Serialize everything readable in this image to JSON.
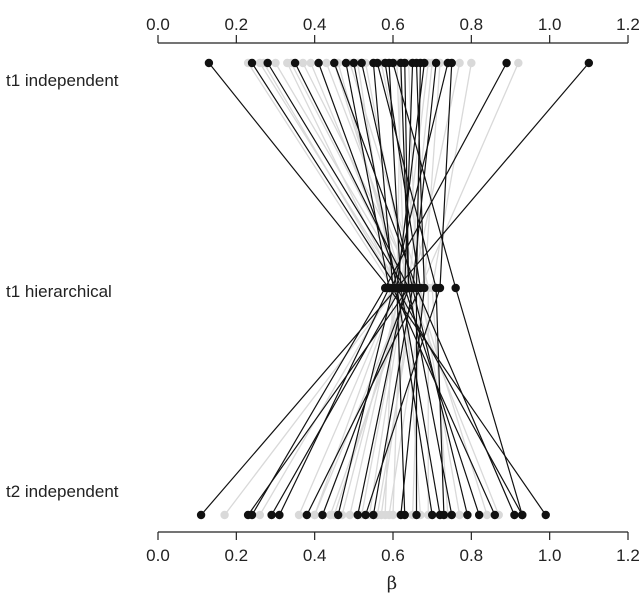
{
  "chart_data": {
    "type": "scatter",
    "title": "",
    "xlabel": "β",
    "ylabel": "",
    "xlim": [
      0.0,
      1.2
    ],
    "x_ticks": [
      "0.0",
      "0.2",
      "0.4",
      "0.6",
      "0.8",
      "1.0",
      "1.2"
    ],
    "x_tick_values": [
      0.0,
      0.2,
      0.4,
      0.6,
      0.8,
      1.0,
      1.2
    ],
    "rows": [
      "t1 independent",
      "t1 hierarchical",
      "t2 independent"
    ],
    "grid": false,
    "legend": "none",
    "colors": {
      "highlighted": "#111111",
      "background": "#d9d9d9",
      "axis": "#222222"
    },
    "highlighted_subjects": [
      {
        "t1_independent": 0.13,
        "t1_hierarchical": 0.59,
        "t2_independent": 0.99
      },
      {
        "t1_independent": 0.24,
        "t1_hierarchical": 0.61,
        "t2_independent": 0.93
      },
      {
        "t1_independent": 0.28,
        "t1_hierarchical": 0.63,
        "t2_independent": 0.82
      },
      {
        "t1_independent": 0.35,
        "t1_hierarchical": 0.64,
        "t2_independent": 0.75
      },
      {
        "t1_independent": 0.41,
        "t1_hierarchical": 0.62,
        "t2_independent": 0.72
      },
      {
        "t1_independent": 0.45,
        "t1_hierarchical": 0.66,
        "t2_independent": 0.91
      },
      {
        "t1_independent": 0.5,
        "t1_hierarchical": 0.61,
        "t2_independent": 0.63
      },
      {
        "t1_independent": 0.52,
        "t1_hierarchical": 0.65,
        "t2_independent": 0.55
      },
      {
        "t1_independent": 0.55,
        "t1_hierarchical": 0.6,
        "t2_independent": 0.46
      },
      {
        "t1_independent": 0.58,
        "t1_hierarchical": 0.67,
        "t2_independent": 0.38
      },
      {
        "t1_independent": 0.59,
        "t1_hierarchical": 0.62,
        "t2_independent": 0.29
      },
      {
        "t1_independent": 0.63,
        "t1_hierarchical": 0.64,
        "t2_independent": 0.23
      },
      {
        "t1_independent": 0.65,
        "t1_hierarchical": 0.63,
        "t2_independent": 0.51
      },
      {
        "t1_independent": 0.66,
        "t1_hierarchical": 0.68,
        "t2_independent": 0.62
      },
      {
        "t1_independent": 0.68,
        "t1_hierarchical": 0.61,
        "t2_independent": 0.7
      },
      {
        "t1_independent": 0.71,
        "t1_hierarchical": 0.65,
        "t2_independent": 0.79
      },
      {
        "t1_independent": 0.74,
        "t1_hierarchical": 0.6,
        "t2_independent": 0.86
      },
      {
        "t1_independent": 0.75,
        "t1_hierarchical": 0.72,
        "t2_independent": 0.53
      },
      {
        "t1_independent": 0.89,
        "t1_hierarchical": 0.58,
        "t2_independent": 0.24
      },
      {
        "t1_independent": 1.1,
        "t1_hierarchical": 0.61,
        "t2_independent": 0.11
      },
      {
        "t1_independent": 0.6,
        "t1_hierarchical": 0.76,
        "t2_independent": 0.93
      },
      {
        "t1_independent": 0.62,
        "t1_hierarchical": 0.64,
        "t2_independent": 0.42
      },
      {
        "t1_independent": 0.67,
        "t1_hierarchical": 0.66,
        "t2_independent": 0.66
      },
      {
        "t1_independent": 0.56,
        "t1_hierarchical": 0.71,
        "t2_independent": 0.73
      },
      {
        "t1_independent": 0.48,
        "t1_hierarchical": 0.59,
        "t2_independent": 0.31
      }
    ],
    "background_subjects": [
      {
        "t1_independent": 0.23,
        "t1_hierarchical": 0.6,
        "t2_independent": 0.58
      },
      {
        "t1_independent": 0.26,
        "t1_hierarchical": 0.62,
        "t2_independent": 0.49
      },
      {
        "t1_independent": 0.3,
        "t1_hierarchical": 0.64,
        "t2_independent": 0.42
      },
      {
        "t1_independent": 0.33,
        "t1_hierarchical": 0.61,
        "t2_independent": 0.36
      },
      {
        "t1_independent": 0.37,
        "t1_hierarchical": 0.66,
        "t2_independent": 0.56
      },
      {
        "t1_independent": 0.39,
        "t1_hierarchical": 0.63,
        "t2_independent": 0.67
      },
      {
        "t1_independent": 0.43,
        "t1_hierarchical": 0.65,
        "t2_independent": 0.44
      },
      {
        "t1_independent": 0.46,
        "t1_hierarchical": 0.62,
        "t2_independent": 0.6
      },
      {
        "t1_independent": 0.49,
        "t1_hierarchical": 0.67,
        "t2_independent": 0.77
      },
      {
        "t1_independent": 0.53,
        "t1_hierarchical": 0.64,
        "t2_independent": 0.4
      },
      {
        "t1_independent": 0.57,
        "t1_hierarchical": 0.69,
        "t2_independent": 0.69
      },
      {
        "t1_independent": 0.61,
        "t1_hierarchical": 0.63,
        "t2_independent": 0.52
      },
      {
        "t1_independent": 0.64,
        "t1_hierarchical": 0.66,
        "t2_independent": 0.84
      },
      {
        "t1_independent": 0.69,
        "t1_hierarchical": 0.62,
        "t2_independent": 0.47
      },
      {
        "t1_independent": 0.72,
        "t1_hierarchical": 0.68,
        "t2_independent": 0.59
      },
      {
        "t1_independent": 0.77,
        "t1_hierarchical": 0.65,
        "t2_independent": 0.57
      },
      {
        "t1_independent": 0.8,
        "t1_hierarchical": 0.7,
        "t2_independent": 0.74
      },
      {
        "t1_independent": 0.92,
        "t1_hierarchical": 0.67,
        "t2_independent": 0.65
      },
      {
        "t1_independent": 0.27,
        "t1_hierarchical": 0.61,
        "t2_independent": 0.17
      },
      {
        "t1_independent": 0.51,
        "t1_hierarchical": 0.6,
        "t2_independent": 0.26
      },
      {
        "t1_independent": 0.34,
        "t1_hierarchical": 0.64,
        "t2_independent": 0.87
      },
      {
        "t1_independent": 0.62,
        "t1_hierarchical": 0.61,
        "t2_independent": 0.4
      },
      {
        "t1_independent": 0.45,
        "t1_hierarchical": 0.63,
        "t2_independent": 0.54
      },
      {
        "t1_independent": 0.7,
        "t1_hierarchical": 0.64,
        "t2_independent": 0.45
      }
    ]
  }
}
